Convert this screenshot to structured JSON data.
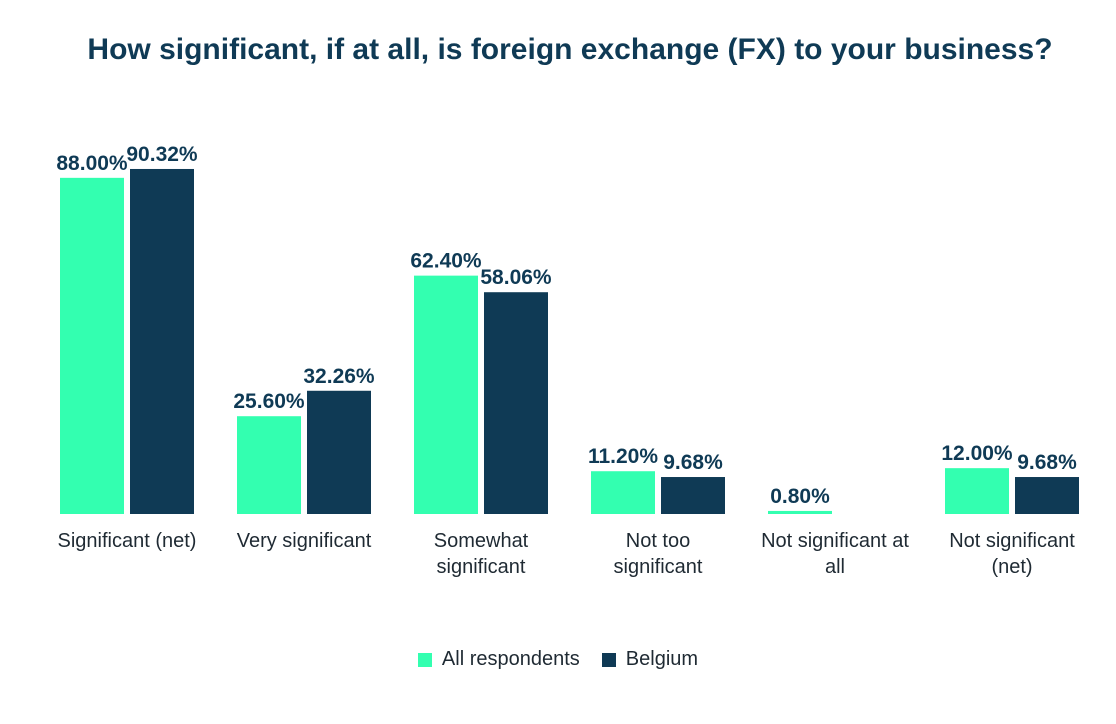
{
  "chart_data": {
    "type": "bar",
    "title": "How significant, if at all, is foreign exchange (FX) to your business?",
    "categories": [
      [
        "Significant (net)"
      ],
      [
        "Very significant"
      ],
      [
        "Somewhat",
        "significant"
      ],
      [
        "Not too",
        "significant"
      ],
      [
        "Not significant at",
        "all"
      ],
      [
        "Not significant",
        "(net)"
      ]
    ],
    "series": [
      {
        "name": "All respondents",
        "color": "#33ffb0",
        "values": [
          88.0,
          25.6,
          62.4,
          11.2,
          0.8,
          12.0
        ],
        "labels": [
          "88.00%",
          "25.60%",
          "62.40%",
          "11.20%",
          "0.80%",
          "12.00%"
        ]
      },
      {
        "name": "Belgium",
        "color": "#0f3a55",
        "values": [
          90.32,
          32.26,
          58.06,
          9.68,
          0,
          9.68
        ],
        "labels": [
          "90.32%",
          "32.26%",
          "58.06%",
          "9.68%",
          "",
          "9.68%"
        ]
      }
    ],
    "ylim": [
      0,
      100
    ],
    "grid": false,
    "legend_position": "bottom"
  }
}
